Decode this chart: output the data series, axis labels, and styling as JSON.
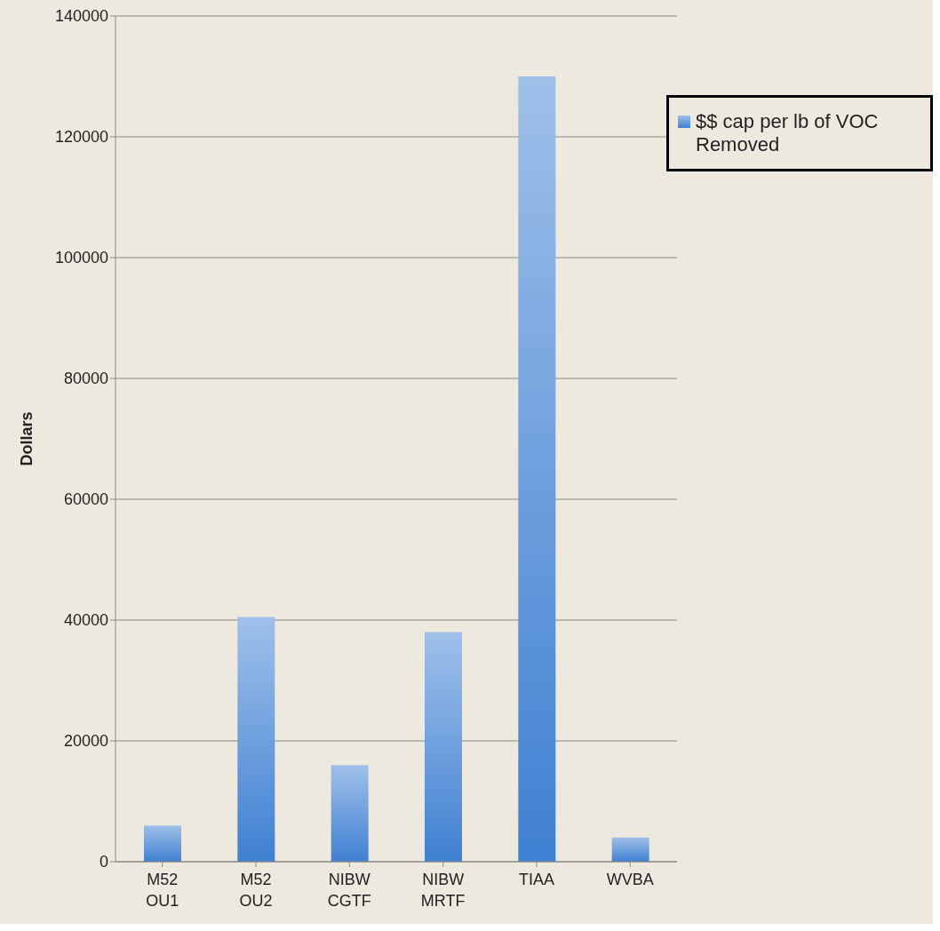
{
  "chart_data": {
    "type": "bar",
    "ylabel": "Dollars",
    "categories": [
      "M52 OU1",
      "M52 OU2",
      "NIBW CGTF",
      "NIBW MRTF",
      "TIAA",
      "WVBA"
    ],
    "series": [
      {
        "name": "$$ cap per lb of VOC Removed",
        "color": "#3f80d2",
        "values": [
          6000,
          40500,
          16000,
          38000,
          130000,
          4000
        ]
      }
    ],
    "ylim": [
      0,
      140000
    ],
    "yticks": [
      0,
      20000,
      40000,
      60000,
      80000,
      100000,
      120000,
      140000
    ],
    "grid": "y",
    "legend": "top right"
  }
}
